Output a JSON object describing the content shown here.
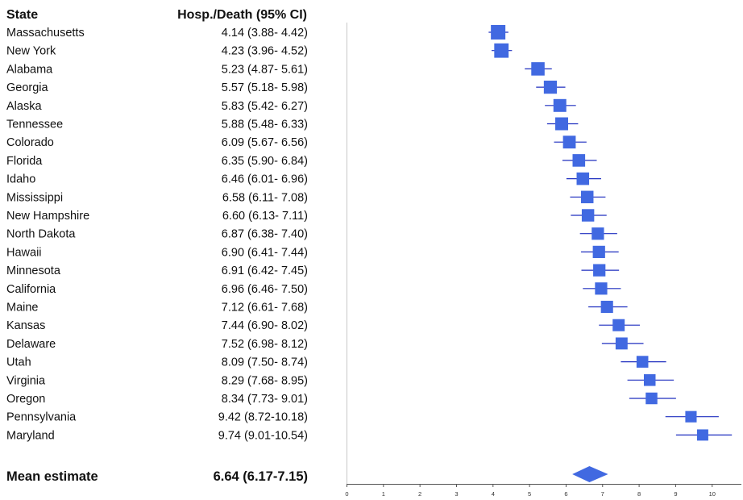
{
  "chart_data": {
    "type": "forest",
    "headers": {
      "state": "State",
      "estimate": "Hosp./Death (95% CI)"
    },
    "rows": [
      {
        "state": "Massachusetts",
        "estimate": 4.14,
        "lower": 3.88,
        "upper": 4.42,
        "label": "4.14 (3.88- 4.42)"
      },
      {
        "state": "New York",
        "estimate": 4.23,
        "lower": 3.96,
        "upper": 4.52,
        "label": "4.23 (3.96- 4.52)"
      },
      {
        "state": "Alabama",
        "estimate": 5.23,
        "lower": 4.87,
        "upper": 5.61,
        "label": "5.23 (4.87- 5.61)"
      },
      {
        "state": "Georgia",
        "estimate": 5.57,
        "lower": 5.18,
        "upper": 5.98,
        "label": "5.57 (5.18- 5.98)"
      },
      {
        "state": "Alaska",
        "estimate": 5.83,
        "lower": 5.42,
        "upper": 6.27,
        "label": "5.83 (5.42- 6.27)"
      },
      {
        "state": "Tennessee",
        "estimate": 5.88,
        "lower": 5.48,
        "upper": 6.33,
        "label": "5.88 (5.48- 6.33)"
      },
      {
        "state": "Colorado",
        "estimate": 6.09,
        "lower": 5.67,
        "upper": 6.56,
        "label": "6.09 (5.67- 6.56)"
      },
      {
        "state": "Florida",
        "estimate": 6.35,
        "lower": 5.9,
        "upper": 6.84,
        "label": "6.35 (5.90- 6.84)"
      },
      {
        "state": "Idaho",
        "estimate": 6.46,
        "lower": 6.01,
        "upper": 6.96,
        "label": "6.46 (6.01- 6.96)"
      },
      {
        "state": "Mississippi",
        "estimate": 6.58,
        "lower": 6.11,
        "upper": 7.08,
        "label": "6.58 (6.11- 7.08)"
      },
      {
        "state": "New Hampshire",
        "estimate": 6.6,
        "lower": 6.13,
        "upper": 7.11,
        "label": "6.60 (6.13- 7.11)"
      },
      {
        "state": "North Dakota",
        "estimate": 6.87,
        "lower": 6.38,
        "upper": 7.4,
        "label": "6.87 (6.38- 7.40)"
      },
      {
        "state": "Hawaii",
        "estimate": 6.9,
        "lower": 6.41,
        "upper": 7.44,
        "label": "6.90 (6.41- 7.44)"
      },
      {
        "state": "Minnesota",
        "estimate": 6.91,
        "lower": 6.42,
        "upper": 7.45,
        "label": "6.91 (6.42- 7.45)"
      },
      {
        "state": "California",
        "estimate": 6.96,
        "lower": 6.46,
        "upper": 7.5,
        "label": "6.96 (6.46- 7.50)"
      },
      {
        "state": "Maine",
        "estimate": 7.12,
        "lower": 6.61,
        "upper": 7.68,
        "label": "7.12 (6.61- 7.68)"
      },
      {
        "state": "Kansas",
        "estimate": 7.44,
        "lower": 6.9,
        "upper": 8.02,
        "label": "7.44 (6.90- 8.02)"
      },
      {
        "state": "Delaware",
        "estimate": 7.52,
        "lower": 6.98,
        "upper": 8.12,
        "label": "7.52 (6.98- 8.12)"
      },
      {
        "state": "Utah",
        "estimate": 8.09,
        "lower": 7.5,
        "upper": 8.74,
        "label": "8.09 (7.50- 8.74)"
      },
      {
        "state": "Virginia",
        "estimate": 8.29,
        "lower": 7.68,
        "upper": 8.95,
        "label": "8.29 (7.68- 8.95)"
      },
      {
        "state": "Oregon",
        "estimate": 8.34,
        "lower": 7.73,
        "upper": 9.01,
        "label": "8.34 (7.73- 9.01)"
      },
      {
        "state": "Pennsylvania",
        "estimate": 9.42,
        "lower": 8.72,
        "upper": 10.18,
        "label": "9.42 (8.72-10.18)"
      },
      {
        "state": "Maryland",
        "estimate": 9.74,
        "lower": 9.01,
        "upper": 10.54,
        "label": "9.74 (9.01-10.54)"
      }
    ],
    "summary": {
      "label": "Mean estimate",
      "estimate": 6.64,
      "lower": 6.17,
      "upper": 7.15,
      "text": "6.64 (6.17-7.15)"
    },
    "xlim": [
      0,
      10.8
    ],
    "xticks": [
      "0",
      "1",
      "2",
      "3",
      "4",
      "5",
      "6",
      "7",
      "8",
      "9",
      "10"
    ],
    "marker_color": "#4169e1",
    "ci_color": "#1f2fbf",
    "axis_color": "#555555",
    "grid": false
  }
}
